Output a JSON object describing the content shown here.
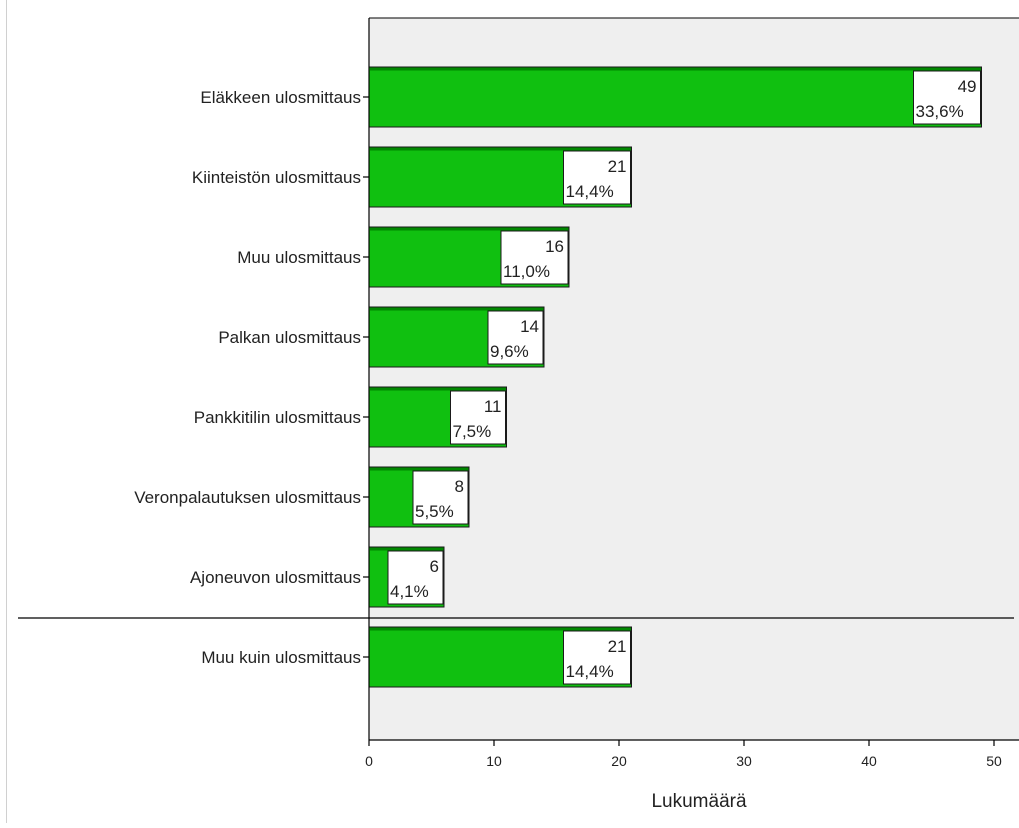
{
  "chart_data": {
    "type": "bar",
    "orientation": "horizontal",
    "categories": [
      "Eläkkeen ulosmittaus",
      "Kiinteistön ulosmittaus",
      "Muu ulosmittaus",
      "Palkan ulosmittaus",
      "Pankkitilin ulosmittaus",
      "Veronpalautuksen ulosmittaus",
      "Ajoneuvon ulosmittaus",
      "Muu kuin ulosmittaus"
    ],
    "values": [
      49,
      21,
      16,
      14,
      11,
      8,
      6,
      21
    ],
    "count_labels": [
      "49",
      "21",
      "16",
      "14",
      "11",
      "8",
      "6",
      "21"
    ],
    "percent_labels": [
      "33,6%",
      "14,4%",
      "11,0%",
      "9,6%",
      "7,5%",
      "5,5%",
      "4,1%",
      "14,4%"
    ],
    "separator_after_index": 6,
    "xlabel": "Lukumäärä",
    "ylabel": "",
    "title": "",
    "xlim": [
      0,
      51.5
    ],
    "xticks": [
      0,
      10,
      20,
      30,
      40,
      50
    ],
    "xtick_labels": [
      "0",
      "10",
      "20",
      "30",
      "40",
      "50"
    ],
    "grid": false,
    "legend": "none",
    "colors": {
      "bar_fill": "#10c010",
      "bar_top": "#008800",
      "plot_background": "#efefef",
      "axis": "#000000",
      "label_box": "#ffffff"
    }
  }
}
